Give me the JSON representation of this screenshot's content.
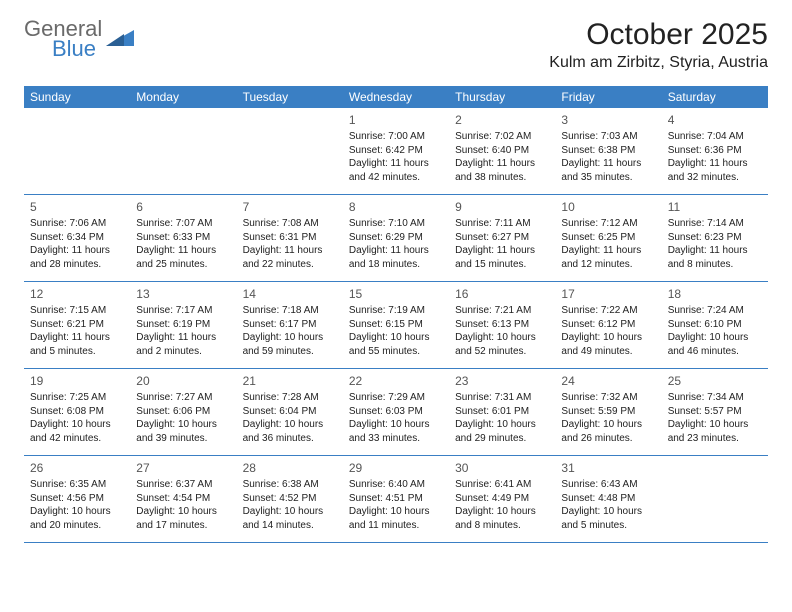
{
  "logo": {
    "line1": "General",
    "line2": "Blue"
  },
  "title": "October 2025",
  "location": "Kulm am Zirbitz, Styria, Austria",
  "colors": {
    "header_bg": "#3a7fc4",
    "header_text": "#ffffff",
    "row_border": "#3a7fc4",
    "page_bg": "#ffffff",
    "text": "#222222",
    "logo_gray": "#6a6a6a",
    "logo_blue": "#3a7fc4"
  },
  "typography": {
    "title_fontsize": 30,
    "location_fontsize": 16,
    "dayheader_fontsize": 12,
    "daynum_fontsize": 12,
    "body_fontsize": 10
  },
  "day_headers": [
    "Sunday",
    "Monday",
    "Tuesday",
    "Wednesday",
    "Thursday",
    "Friday",
    "Saturday"
  ],
  "weeks": [
    [
      {
        "num": "",
        "sunrise": "",
        "sunset": "",
        "daylight": ""
      },
      {
        "num": "",
        "sunrise": "",
        "sunset": "",
        "daylight": ""
      },
      {
        "num": "",
        "sunrise": "",
        "sunset": "",
        "daylight": ""
      },
      {
        "num": "1",
        "sunrise": "Sunrise: 7:00 AM",
        "sunset": "Sunset: 6:42 PM",
        "daylight": "Daylight: 11 hours and 42 minutes."
      },
      {
        "num": "2",
        "sunrise": "Sunrise: 7:02 AM",
        "sunset": "Sunset: 6:40 PM",
        "daylight": "Daylight: 11 hours and 38 minutes."
      },
      {
        "num": "3",
        "sunrise": "Sunrise: 7:03 AM",
        "sunset": "Sunset: 6:38 PM",
        "daylight": "Daylight: 11 hours and 35 minutes."
      },
      {
        "num": "4",
        "sunrise": "Sunrise: 7:04 AM",
        "sunset": "Sunset: 6:36 PM",
        "daylight": "Daylight: 11 hours and 32 minutes."
      }
    ],
    [
      {
        "num": "5",
        "sunrise": "Sunrise: 7:06 AM",
        "sunset": "Sunset: 6:34 PM",
        "daylight": "Daylight: 11 hours and 28 minutes."
      },
      {
        "num": "6",
        "sunrise": "Sunrise: 7:07 AM",
        "sunset": "Sunset: 6:33 PM",
        "daylight": "Daylight: 11 hours and 25 minutes."
      },
      {
        "num": "7",
        "sunrise": "Sunrise: 7:08 AM",
        "sunset": "Sunset: 6:31 PM",
        "daylight": "Daylight: 11 hours and 22 minutes."
      },
      {
        "num": "8",
        "sunrise": "Sunrise: 7:10 AM",
        "sunset": "Sunset: 6:29 PM",
        "daylight": "Daylight: 11 hours and 18 minutes."
      },
      {
        "num": "9",
        "sunrise": "Sunrise: 7:11 AM",
        "sunset": "Sunset: 6:27 PM",
        "daylight": "Daylight: 11 hours and 15 minutes."
      },
      {
        "num": "10",
        "sunrise": "Sunrise: 7:12 AM",
        "sunset": "Sunset: 6:25 PM",
        "daylight": "Daylight: 11 hours and 12 minutes."
      },
      {
        "num": "11",
        "sunrise": "Sunrise: 7:14 AM",
        "sunset": "Sunset: 6:23 PM",
        "daylight": "Daylight: 11 hours and 8 minutes."
      }
    ],
    [
      {
        "num": "12",
        "sunrise": "Sunrise: 7:15 AM",
        "sunset": "Sunset: 6:21 PM",
        "daylight": "Daylight: 11 hours and 5 minutes."
      },
      {
        "num": "13",
        "sunrise": "Sunrise: 7:17 AM",
        "sunset": "Sunset: 6:19 PM",
        "daylight": "Daylight: 11 hours and 2 minutes."
      },
      {
        "num": "14",
        "sunrise": "Sunrise: 7:18 AM",
        "sunset": "Sunset: 6:17 PM",
        "daylight": "Daylight: 10 hours and 59 minutes."
      },
      {
        "num": "15",
        "sunrise": "Sunrise: 7:19 AM",
        "sunset": "Sunset: 6:15 PM",
        "daylight": "Daylight: 10 hours and 55 minutes."
      },
      {
        "num": "16",
        "sunrise": "Sunrise: 7:21 AM",
        "sunset": "Sunset: 6:13 PM",
        "daylight": "Daylight: 10 hours and 52 minutes."
      },
      {
        "num": "17",
        "sunrise": "Sunrise: 7:22 AM",
        "sunset": "Sunset: 6:12 PM",
        "daylight": "Daylight: 10 hours and 49 minutes."
      },
      {
        "num": "18",
        "sunrise": "Sunrise: 7:24 AM",
        "sunset": "Sunset: 6:10 PM",
        "daylight": "Daylight: 10 hours and 46 minutes."
      }
    ],
    [
      {
        "num": "19",
        "sunrise": "Sunrise: 7:25 AM",
        "sunset": "Sunset: 6:08 PM",
        "daylight": "Daylight: 10 hours and 42 minutes."
      },
      {
        "num": "20",
        "sunrise": "Sunrise: 7:27 AM",
        "sunset": "Sunset: 6:06 PM",
        "daylight": "Daylight: 10 hours and 39 minutes."
      },
      {
        "num": "21",
        "sunrise": "Sunrise: 7:28 AM",
        "sunset": "Sunset: 6:04 PM",
        "daylight": "Daylight: 10 hours and 36 minutes."
      },
      {
        "num": "22",
        "sunrise": "Sunrise: 7:29 AM",
        "sunset": "Sunset: 6:03 PM",
        "daylight": "Daylight: 10 hours and 33 minutes."
      },
      {
        "num": "23",
        "sunrise": "Sunrise: 7:31 AM",
        "sunset": "Sunset: 6:01 PM",
        "daylight": "Daylight: 10 hours and 29 minutes."
      },
      {
        "num": "24",
        "sunrise": "Sunrise: 7:32 AM",
        "sunset": "Sunset: 5:59 PM",
        "daylight": "Daylight: 10 hours and 26 minutes."
      },
      {
        "num": "25",
        "sunrise": "Sunrise: 7:34 AM",
        "sunset": "Sunset: 5:57 PM",
        "daylight": "Daylight: 10 hours and 23 minutes."
      }
    ],
    [
      {
        "num": "26",
        "sunrise": "Sunrise: 6:35 AM",
        "sunset": "Sunset: 4:56 PM",
        "daylight": "Daylight: 10 hours and 20 minutes."
      },
      {
        "num": "27",
        "sunrise": "Sunrise: 6:37 AM",
        "sunset": "Sunset: 4:54 PM",
        "daylight": "Daylight: 10 hours and 17 minutes."
      },
      {
        "num": "28",
        "sunrise": "Sunrise: 6:38 AM",
        "sunset": "Sunset: 4:52 PM",
        "daylight": "Daylight: 10 hours and 14 minutes."
      },
      {
        "num": "29",
        "sunrise": "Sunrise: 6:40 AM",
        "sunset": "Sunset: 4:51 PM",
        "daylight": "Daylight: 10 hours and 11 minutes."
      },
      {
        "num": "30",
        "sunrise": "Sunrise: 6:41 AM",
        "sunset": "Sunset: 4:49 PM",
        "daylight": "Daylight: 10 hours and 8 minutes."
      },
      {
        "num": "31",
        "sunrise": "Sunrise: 6:43 AM",
        "sunset": "Sunset: 4:48 PM",
        "daylight": "Daylight: 10 hours and 5 minutes."
      },
      {
        "num": "",
        "sunrise": "",
        "sunset": "",
        "daylight": ""
      }
    ]
  ]
}
